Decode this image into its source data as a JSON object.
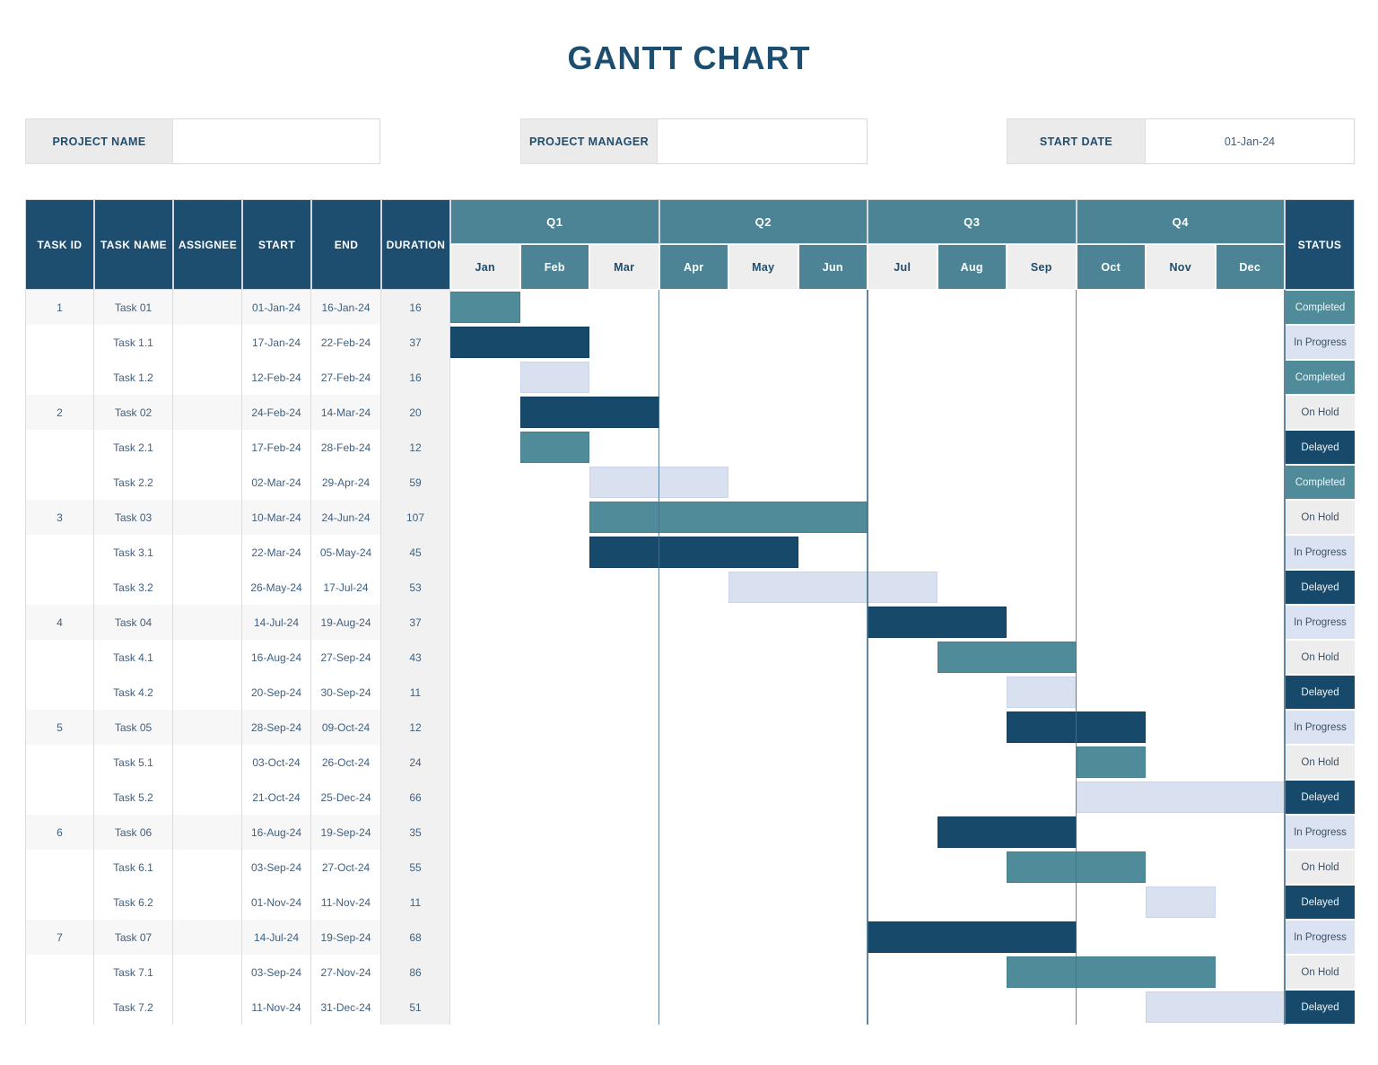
{
  "title": "GANTT CHART",
  "info": {
    "project_name_label": "PROJECT NAME",
    "project_name_value": "",
    "project_manager_label": "PROJECT MANAGER",
    "project_manager_value": "",
    "start_date_label": "START DATE",
    "start_date_value": "01-Jan-24"
  },
  "table": {
    "columns": [
      "TASK ID",
      "TASK NAME",
      "ASSIGNEE",
      "START",
      "END",
      "DURATION"
    ],
    "status_header": "STATUS"
  },
  "colors": {
    "navy": "#1d4d6f",
    "teal": "#4d8495",
    "month-light": "#eeeeee",
    "duration-bg": "#f1f1f1",
    "band-bg": "#f7f7f8",
    "label-bg": "#ebebeb",
    "text-steel": "#3f6080",
    "divider": "#45708c"
  },
  "palette": {
    "bar_teal": {
      "fill": "#4f8b99",
      "border": "#467f8d"
    },
    "bar_dark": {
      "fill": "#17496b",
      "border": "#133f5e"
    },
    "bar_lavender": {
      "fill": "#d9e0ef",
      "border": "#cbd4e8"
    },
    "chip_completed": {
      "fill": "#4f8b99",
      "text": "#f1f6f7"
    },
    "chip_in_progress": {
      "fill": "#dbe2f1",
      "text": "#3d5166"
    },
    "chip_on_hold": {
      "fill": "#ededee",
      "text": "#3d5166"
    },
    "chip_delayed": {
      "fill": "#17496b",
      "text": "#edf2f6"
    }
  },
  "chart_data": {
    "type": "gantt",
    "title": "GANTT CHART",
    "x_axis": {
      "quarters": [
        "Q1",
        "Q2",
        "Q3",
        "Q4"
      ],
      "months": [
        "Jan",
        "Feb",
        "Mar",
        "Apr",
        "May",
        "Jun",
        "Jul",
        "Aug",
        "Sep",
        "Oct",
        "Nov",
        "Dec"
      ]
    },
    "tasks": [
      {
        "id": "1",
        "name": "Task 01",
        "assignee": "",
        "start": "01-Jan-24",
        "end": "16-Jan-24",
        "duration": 16,
        "status": "Completed",
        "status_style": "completed",
        "bar": {
          "from_month": 0,
          "to_month": 0,
          "color": "teal"
        }
      },
      {
        "id": "",
        "name": "Task 1.1",
        "assignee": "",
        "start": "17-Jan-24",
        "end": "22-Feb-24",
        "duration": 37,
        "status": "In Progress",
        "status_style": "in_progress",
        "bar": {
          "from_month": 0,
          "to_month": 1,
          "color": "dark"
        }
      },
      {
        "id": "",
        "name": "Task 1.2",
        "assignee": "",
        "start": "12-Feb-24",
        "end": "27-Feb-24",
        "duration": 16,
        "status": "Completed",
        "status_style": "completed",
        "bar": {
          "from_month": 1,
          "to_month": 1,
          "color": "lavender"
        }
      },
      {
        "id": "2",
        "name": "Task 02",
        "assignee": "",
        "start": "24-Feb-24",
        "end": "14-Mar-24",
        "duration": 20,
        "status": "On Hold",
        "status_style": "on_hold",
        "bar": {
          "from_month": 1,
          "to_month": 2,
          "color": "dark"
        }
      },
      {
        "id": "",
        "name": "Task 2.1",
        "assignee": "",
        "start": "17-Feb-24",
        "end": "28-Feb-24",
        "duration": 12,
        "status": "Delayed",
        "status_style": "delayed",
        "bar": {
          "from_month": 1,
          "to_month": 1,
          "color": "teal"
        }
      },
      {
        "id": "",
        "name": "Task 2.2",
        "assignee": "",
        "start": "02-Mar-24",
        "end": "29-Apr-24",
        "duration": 59,
        "status": "Completed",
        "status_style": "completed",
        "bar": {
          "from_month": 2,
          "to_month": 3,
          "color": "lavender"
        }
      },
      {
        "id": "3",
        "name": "Task 03",
        "assignee": "",
        "start": "10-Mar-24",
        "end": "24-Jun-24",
        "duration": 107,
        "status": "On Hold",
        "status_style": "on_hold",
        "bar": {
          "from_month": 2,
          "to_month": 5,
          "color": "teal"
        }
      },
      {
        "id": "",
        "name": "Task 3.1",
        "assignee": "",
        "start": "22-Mar-24",
        "end": "05-May-24",
        "duration": 45,
        "status": "In Progress",
        "status_style": "in_progress",
        "bar": {
          "from_month": 2,
          "to_month": 4,
          "color": "dark"
        }
      },
      {
        "id": "",
        "name": "Task 3.2",
        "assignee": "",
        "start": "26-May-24",
        "end": "17-Jul-24",
        "duration": 53,
        "status": "Delayed",
        "status_style": "delayed",
        "bar": {
          "from_month": 4,
          "to_month": 6,
          "color": "lavender"
        }
      },
      {
        "id": "4",
        "name": "Task 04",
        "assignee": "",
        "start": "14-Jul-24",
        "end": "19-Aug-24",
        "duration": 37,
        "status": "In Progress",
        "status_style": "in_progress",
        "bar": {
          "from_month": 6,
          "to_month": 7,
          "color": "dark"
        }
      },
      {
        "id": "",
        "name": "Task 4.1",
        "assignee": "",
        "start": "16-Aug-24",
        "end": "27-Sep-24",
        "duration": 43,
        "status": "On Hold",
        "status_style": "on_hold",
        "bar": {
          "from_month": 7,
          "to_month": 8,
          "color": "teal"
        }
      },
      {
        "id": "",
        "name": "Task 4.2",
        "assignee": "",
        "start": "20-Sep-24",
        "end": "30-Sep-24",
        "duration": 11,
        "status": "Delayed",
        "status_style": "delayed",
        "bar": {
          "from_month": 8,
          "to_month": 8,
          "color": "lavender"
        }
      },
      {
        "id": "5",
        "name": "Task 05",
        "assignee": "",
        "start": "28-Sep-24",
        "end": "09-Oct-24",
        "duration": 12,
        "status": "In Progress",
        "status_style": "in_progress",
        "bar": {
          "from_month": 8,
          "to_month": 9,
          "color": "dark"
        }
      },
      {
        "id": "",
        "name": "Task 5.1",
        "assignee": "",
        "start": "03-Oct-24",
        "end": "26-Oct-24",
        "duration": 24,
        "status": "On Hold",
        "status_style": "on_hold",
        "bar": {
          "from_month": 9,
          "to_month": 9,
          "color": "teal"
        }
      },
      {
        "id": "",
        "name": "Task 5.2",
        "assignee": "",
        "start": "21-Oct-24",
        "end": "25-Dec-24",
        "duration": 66,
        "status": "Delayed",
        "status_style": "delayed",
        "bar": {
          "from_month": 9,
          "to_month": 11,
          "color": "lavender"
        }
      },
      {
        "id": "6",
        "name": "Task 06",
        "assignee": "",
        "start": "16-Aug-24",
        "end": "19-Sep-24",
        "duration": 35,
        "status": "In Progress",
        "status_style": "in_progress",
        "bar": {
          "from_month": 7,
          "to_month": 8,
          "color": "dark"
        }
      },
      {
        "id": "",
        "name": "Task 6.1",
        "assignee": "",
        "start": "03-Sep-24",
        "end": "27-Oct-24",
        "duration": 55,
        "status": "On Hold",
        "status_style": "on_hold",
        "bar": {
          "from_month": 8,
          "to_month": 9,
          "color": "teal"
        }
      },
      {
        "id": "",
        "name": "Task 6.2",
        "assignee": "",
        "start": "01-Nov-24",
        "end": "11-Nov-24",
        "duration": 11,
        "status": "Delayed",
        "status_style": "delayed",
        "bar": {
          "from_month": 10,
          "to_month": 10,
          "color": "lavender"
        }
      },
      {
        "id": "7",
        "name": "Task 07",
        "assignee": "",
        "start": "14-Jul-24",
        "end": "19-Sep-24",
        "duration": 68,
        "status": "In Progress",
        "status_style": "in_progress",
        "bar": {
          "from_month": 6,
          "to_month": 8,
          "color": "dark"
        }
      },
      {
        "id": "",
        "name": "Task 7.1",
        "assignee": "",
        "start": "03-Sep-24",
        "end": "27-Nov-24",
        "duration": 86,
        "status": "On Hold",
        "status_style": "on_hold",
        "bar": {
          "from_month": 8,
          "to_month": 10,
          "color": "teal"
        }
      },
      {
        "id": "",
        "name": "Task 7.2",
        "assignee": "",
        "start": "11-Nov-24",
        "end": "31-Dec-24",
        "duration": 51,
        "status": "Delayed",
        "status_style": "delayed",
        "bar": {
          "from_month": 10,
          "to_month": 11,
          "color": "lavender"
        }
      }
    ]
  }
}
